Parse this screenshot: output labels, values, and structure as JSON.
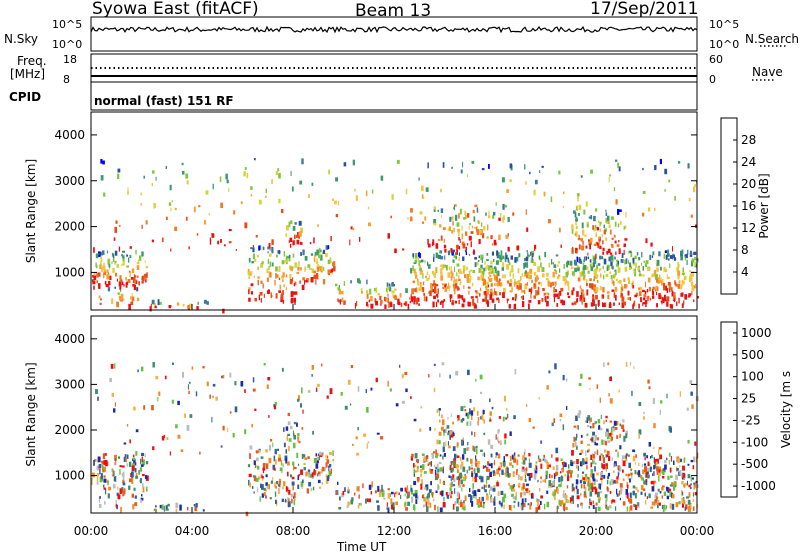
{
  "header": {
    "title": "Syowa East (fitACF)",
    "beam": "Beam 13",
    "date": "17/Sep/2011"
  },
  "status_panels": {
    "nsky_label": "N.Sky",
    "nsky_ticks": [
      "10^5",
      "10^0"
    ],
    "nsearch_label": "N.Search",
    "nsearch_ticks": [
      "10^5",
      "10^0"
    ],
    "freq_label": "Freq.",
    "freq_unit": "[MHz]",
    "freq_ticks": [
      "18",
      "8"
    ],
    "nave_label": "Nave",
    "nave_ticks": [
      "60",
      "0"
    ],
    "cpid_label": "CPID",
    "cpid_text": "normal (fast) 151 RF"
  },
  "chart_data": [
    {
      "type": "heatmap",
      "name": "power",
      "ylabel": "Slant Range [km]",
      "ylim": [
        180,
        4500
      ],
      "yticks": [
        "1000",
        "2000",
        "3000",
        "4000"
      ],
      "colorbar_label": "Power [dB]",
      "colorbar_ticks": [
        "4",
        "8",
        "12",
        "16",
        "20",
        "24",
        "28"
      ],
      "colorscale": [
        "#0000ff",
        "#2a4fa0",
        "#3c7a9a",
        "#3c9b6a",
        "#7fc63c",
        "#d7d23a",
        "#f5c542",
        "#f5a030",
        "#f07a22",
        "#e84a1a",
        "#e81010"
      ]
    },
    {
      "type": "heatmap",
      "name": "velocity",
      "ylabel": "Slant Range [km]",
      "ylim": [
        180,
        4500
      ],
      "yticks": [
        "1000",
        "2000",
        "3000",
        "4000"
      ],
      "colorbar_label": "Velocity [m s",
      "colorbar_ticks": [
        "1000",
        "500",
        "100",
        "25",
        "-25",
        "-100",
        "-500",
        "-1000"
      ],
      "colorscale": [
        "#1a2aa8",
        "#2f5e9a",
        "#3e8a6a",
        "#62c040",
        "#bcbcbc",
        "#f5b040",
        "#f08a20",
        "#e85a18",
        "#e81010"
      ]
    }
  ],
  "xaxis": {
    "label": "Time UT",
    "ticks": [
      "00:00",
      "04:00",
      "08:00",
      "12:00",
      "16:00",
      "20:00",
      "00:00"
    ]
  }
}
